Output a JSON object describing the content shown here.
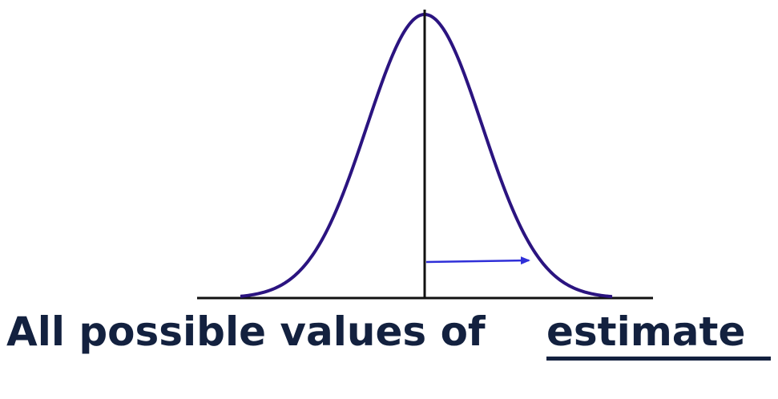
{
  "caption": {
    "prefix": "All possible values of",
    "emphasis": "estimate"
  },
  "colors": {
    "curve": "#2b1480",
    "axis": "#111111",
    "arrow": "#2f2fd8",
    "caption": "#13213f"
  }
}
